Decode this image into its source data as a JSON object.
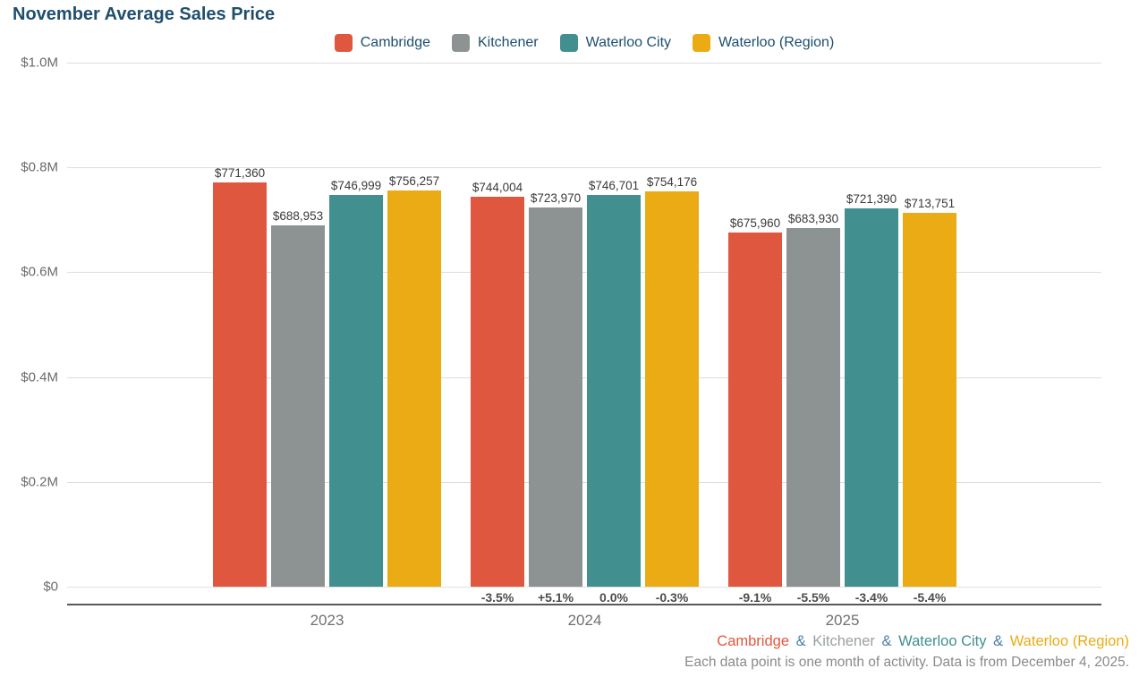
{
  "title": "November Average Sales Price",
  "colors": {
    "cambridge": "#E0573F",
    "kitchener": "#8D9392",
    "waterloo_city": "#41908F",
    "waterloo_region": "#EAAB15",
    "heading_text": "#1F4E6E",
    "ampersand": "#4C7FA6",
    "gridline": "#dcdcdc",
    "axis_line": "#595959"
  },
  "legend": {
    "items": [
      {
        "id": "cambridge",
        "label": "Cambridge",
        "color": "#E0573F"
      },
      {
        "id": "kitchener",
        "label": "Kitchener",
        "color": "#8D9392"
      },
      {
        "id": "waterloo-city",
        "label": "Waterloo City",
        "color": "#41908F"
      },
      {
        "id": "waterloo-region",
        "label": "Waterloo (Region)",
        "color": "#EAAB15"
      }
    ]
  },
  "chart_data": {
    "type": "bar",
    "title": "November Average Sales Price",
    "categories": [
      "2023",
      "2024",
      "2025"
    ],
    "series": [
      {
        "name": "Cambridge",
        "color": "#E0573F",
        "values": [
          771360,
          744004,
          675960
        ],
        "value_labels": [
          "$771,360",
          "$744,004",
          "$675,960"
        ],
        "pct_labels": [
          "",
          "-3.5%",
          "-9.1%"
        ]
      },
      {
        "name": "Kitchener",
        "color": "#8D9392",
        "values": [
          688953,
          723970,
          683930
        ],
        "value_labels": [
          "$688,953",
          "$723,970",
          "$683,930"
        ],
        "pct_labels": [
          "",
          "+5.1%",
          "-5.5%"
        ]
      },
      {
        "name": "Waterloo City",
        "color": "#41908F",
        "values": [
          746999,
          746701,
          721390
        ],
        "value_labels": [
          "$746,999",
          "$746,701",
          "$721,390"
        ],
        "pct_labels": [
          "",
          "0.0%",
          "-3.4%"
        ]
      },
      {
        "name": "Waterloo (Region)",
        "color": "#EAAB15",
        "values": [
          756257,
          754176,
          713751
        ],
        "value_labels": [
          "$756,257",
          "$754,176",
          "$713,751"
        ],
        "pct_labels": [
          "",
          "-0.3%",
          "-5.4%"
        ]
      }
    ],
    "ylim": [
      0,
      1000000
    ],
    "y_ticks": [
      {
        "label": "$1.0M",
        "value": 1000000
      },
      {
        "label": "$0.8M",
        "value": 800000
      },
      {
        "label": "$0.6M",
        "value": 600000
      },
      {
        "label": "$0.4M",
        "value": 400000
      },
      {
        "label": "$0.2M",
        "value": 200000
      },
      {
        "label": "$0",
        "value": 0
      }
    ],
    "grid": "horizontal",
    "legend_position": "top-center"
  },
  "footer": {
    "links": [
      {
        "label": "Cambridge",
        "color": "#E0573F"
      },
      {
        "label": "Kitchener",
        "color": "#9AA0A0"
      },
      {
        "label": "Waterloo City",
        "color": "#41908F"
      },
      {
        "label": "Waterloo (Region)",
        "color": "#EAAB15"
      }
    ],
    "separator": "&",
    "note": "Each data point is one month of activity. Data is from December 4, 2025."
  }
}
